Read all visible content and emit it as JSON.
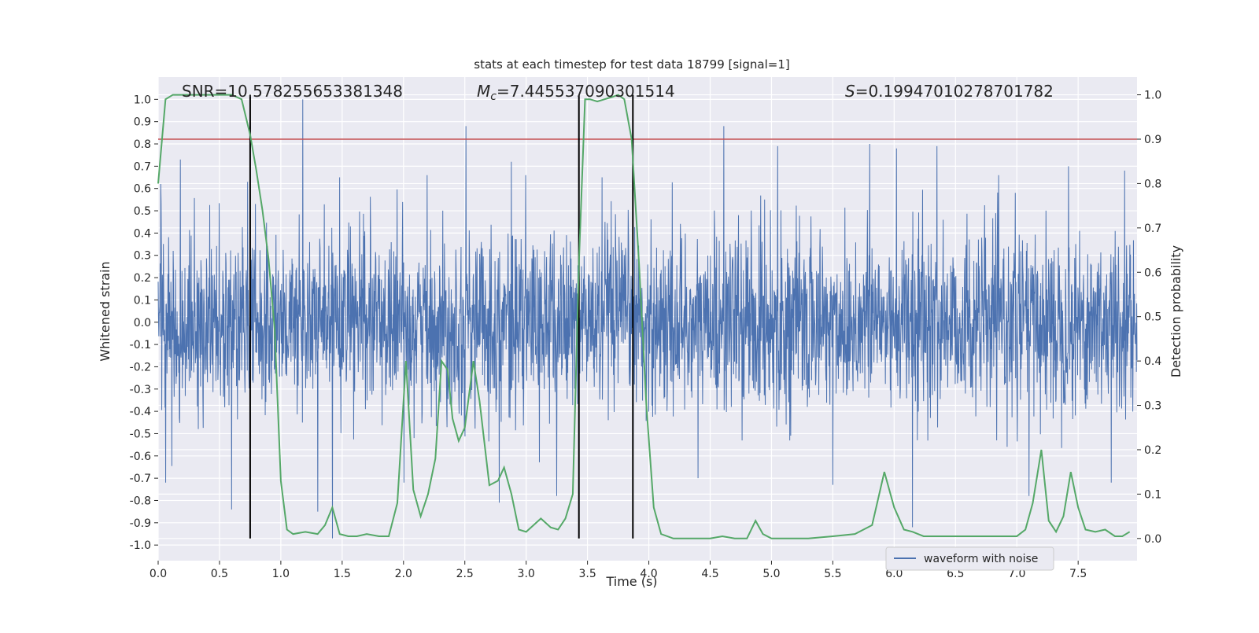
{
  "chart_data": {
    "type": "line",
    "title": "stats at each timestep for test data 18799 [signal=1]",
    "xlabel": "Time (s)",
    "ylabel_left": "Whitened strain",
    "ylabel_right": "Detection probability",
    "xlim": [
      0.0,
      7.98
    ],
    "ylim_left": [
      -1.07,
      1.1
    ],
    "ylim_right": [
      -0.05,
      1.04
    ],
    "x_ticks": [
      "0.0",
      "0.5",
      "1.0",
      "1.5",
      "2.0",
      "2.5",
      "3.0",
      "3.5",
      "4.0",
      "4.5",
      "5.0",
      "5.5",
      "6.0",
      "6.5",
      "7.0",
      "7.5"
    ],
    "y_left_ticks": [
      "-1.0",
      "-0.9",
      "-0.8",
      "-0.7",
      "-0.6",
      "-0.5",
      "-0.4",
      "-0.3",
      "-0.2",
      "-0.1",
      "0.0",
      "0.1",
      "0.2",
      "0.3",
      "0.4",
      "0.5",
      "0.6",
      "0.7",
      "0.8",
      "0.9",
      "1.0"
    ],
    "y_right_ticks": [
      "0.0",
      "0.1",
      "0.2",
      "0.3",
      "0.4",
      "0.5",
      "0.6",
      "0.7",
      "0.8",
      "0.9",
      "1.0"
    ],
    "grid": true,
    "legend": {
      "position": "lower-right",
      "entries": [
        "waveform with noise"
      ]
    },
    "annotations": {
      "snr": "SNR=10.578255653381348",
      "mc_symbol": "M",
      "mc_sub": "c",
      "mc_value": "=7.445537090301514",
      "s_symbol": "S",
      "s_value": "=0.19947010278701782"
    },
    "threshold": {
      "value": 0.9,
      "axis": "right",
      "color": "#c44e52"
    },
    "vertical_markers": [
      0.75,
      3.43,
      3.87
    ],
    "colors": {
      "waveform": "#4c72b0",
      "probability": "#55a868",
      "threshold": "#c44e52",
      "markers": "#000000",
      "background": "#eaeaf2",
      "grid": "#ffffff"
    },
    "series": [
      {
        "name": "waveform with noise",
        "axis": "left",
        "description_kind": "dense noisy strain samples",
        "envelope_peaks_positive": [
          [
            0.02,
            0.62
          ],
          [
            0.18,
            0.73
          ],
          [
            0.73,
            0.63
          ],
          [
            1.18,
            1.0
          ],
          [
            1.48,
            0.65
          ],
          [
            2.51,
            0.88
          ],
          [
            2.88,
            0.72
          ],
          [
            3.62,
            0.65
          ],
          [
            4.61,
            0.88
          ],
          [
            5.05,
            0.79
          ],
          [
            5.8,
            0.8
          ],
          [
            6.02,
            0.78
          ],
          [
            6.35,
            0.79
          ],
          [
            7.42,
            0.7
          ],
          [
            7.88,
            0.68
          ]
        ],
        "envelope_peaks_negative": [
          [
            0.06,
            -0.72
          ],
          [
            0.6,
            -0.84
          ],
          [
            1.3,
            -0.85
          ],
          [
            1.42,
            -0.97
          ],
          [
            2.78,
            -0.81
          ],
          [
            3.25,
            -0.78
          ],
          [
            4.4,
            -0.7
          ],
          [
            5.5,
            -0.73
          ],
          [
            6.15,
            -0.92
          ],
          [
            7.1,
            -0.78
          ],
          [
            7.77,
            -0.72
          ]
        ]
      },
      {
        "name": "",
        "axis": "right",
        "x": [
          0.0,
          0.06,
          0.12,
          0.2,
          0.3,
          0.4,
          0.5,
          0.6,
          0.68,
          0.75,
          0.8,
          0.85,
          0.9,
          0.95,
          1.0,
          1.05,
          1.1,
          1.2,
          1.3,
          1.36,
          1.42,
          1.48,
          1.55,
          1.62,
          1.7,
          1.8,
          1.88,
          1.95,
          2.02,
          2.08,
          2.14,
          2.2,
          2.26,
          2.31,
          2.36,
          2.4,
          2.45,
          2.5,
          2.57,
          2.62,
          2.7,
          2.77,
          2.82,
          2.88,
          2.94,
          3.0,
          3.06,
          3.12,
          3.2,
          3.26,
          3.32,
          3.38,
          3.43,
          3.48,
          3.52,
          3.58,
          3.64,
          3.7,
          3.75,
          3.8,
          3.86,
          3.92,
          3.98,
          4.04,
          4.1,
          4.2,
          4.3,
          4.5,
          4.6,
          4.7,
          4.8,
          4.87,
          4.93,
          5.0,
          5.1,
          5.3,
          5.5,
          5.68,
          5.82,
          5.92,
          6.0,
          6.08,
          6.15,
          6.24,
          6.4,
          6.6,
          6.8,
          7.0,
          7.07,
          7.13,
          7.2,
          7.26,
          7.32,
          7.38,
          7.44,
          7.5,
          7.56,
          7.64,
          7.72,
          7.8,
          7.86,
          7.92
        ],
        "values": [
          0.8,
          0.99,
          1.0,
          1.0,
          1.0,
          1.0,
          1.0,
          1.0,
          0.99,
          0.91,
          0.83,
          0.74,
          0.63,
          0.47,
          0.13,
          0.02,
          0.01,
          0.015,
          0.01,
          0.03,
          0.07,
          0.01,
          0.005,
          0.005,
          0.01,
          0.005,
          0.005,
          0.08,
          0.4,
          0.11,
          0.05,
          0.1,
          0.18,
          0.4,
          0.38,
          0.27,
          0.22,
          0.25,
          0.4,
          0.31,
          0.12,
          0.13,
          0.16,
          0.1,
          0.02,
          0.015,
          0.03,
          0.045,
          0.025,
          0.02,
          0.045,
          0.1,
          0.62,
          0.99,
          0.99,
          0.985,
          0.99,
          0.995,
          1.0,
          0.99,
          0.9,
          0.62,
          0.3,
          0.07,
          0.01,
          0.0,
          0.0,
          0.0,
          0.005,
          0.0,
          0.0,
          0.04,
          0.01,
          0.0,
          0.0,
          0.0,
          0.005,
          0.01,
          0.03,
          0.15,
          0.07,
          0.02,
          0.015,
          0.005,
          0.005,
          0.005,
          0.005,
          0.005,
          0.02,
          0.08,
          0.2,
          0.04,
          0.015,
          0.05,
          0.15,
          0.07,
          0.02,
          0.015,
          0.02,
          0.005,
          0.005,
          0.015
        ]
      }
    ]
  }
}
